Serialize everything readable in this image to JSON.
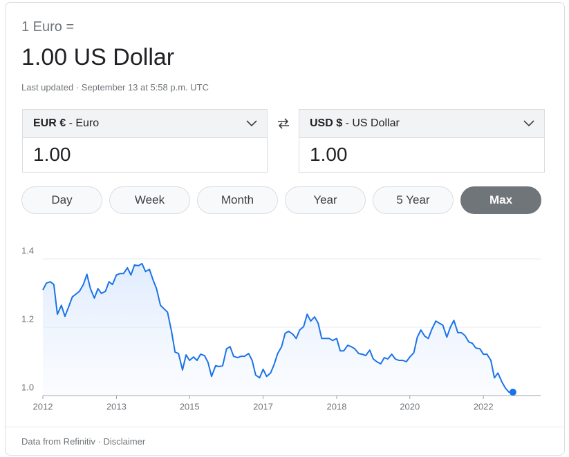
{
  "header": {
    "label": "1 Euro =",
    "result": "1.00 US Dollar",
    "updated": "Last updated · September 13 at 5:58 p.m. UTC"
  },
  "converter": {
    "from": {
      "code": "EUR €",
      "name": "- Euro",
      "amount": "1.00"
    },
    "to": {
      "code": "USD $",
      "name": "- US Dollar",
      "amount": "1.00"
    }
  },
  "ranges": {
    "options": [
      "Day",
      "Week",
      "Month",
      "Year",
      "5 Year",
      "Max"
    ],
    "selected": 5
  },
  "chart_data": {
    "type": "line",
    "color": "#1a73e8",
    "x": [
      2012,
      2012.08,
      2012.17,
      2012.25,
      2012.33,
      2012.42,
      2012.5,
      2012.58,
      2012.67,
      2012.75,
      2012.83,
      2012.92,
      2013,
      2013.08,
      2013.17,
      2013.25,
      2013.33,
      2013.42,
      2013.5,
      2013.58,
      2013.67,
      2013.75,
      2013.83,
      2013.92,
      2014,
      2014.08,
      2014.17,
      2014.25,
      2014.33,
      2014.42,
      2014.5,
      2014.58,
      2014.67,
      2014.75,
      2014.83,
      2014.92,
      2015,
      2015.08,
      2015.17,
      2015.25,
      2015.33,
      2015.42,
      2015.5,
      2015.58,
      2015.67,
      2015.75,
      2015.83,
      2015.92,
      2016,
      2016.08,
      2016.17,
      2016.25,
      2016.33,
      2016.42,
      2016.5,
      2016.58,
      2016.67,
      2016.75,
      2016.83,
      2016.92,
      2017,
      2017.08,
      2017.17,
      2017.25,
      2017.33,
      2017.42,
      2017.5,
      2017.58,
      2017.67,
      2017.75,
      2017.83,
      2017.92,
      2018,
      2018.08,
      2018.17,
      2018.25,
      2018.33,
      2018.42,
      2018.5,
      2018.58,
      2018.67,
      2018.75,
      2018.83,
      2018.92,
      2019,
      2019.08,
      2019.17,
      2019.25,
      2019.33,
      2019.42,
      2019.5,
      2019.58,
      2019.67,
      2019.75,
      2019.83,
      2019.92,
      2020,
      2020.08,
      2020.17,
      2020.25,
      2020.33,
      2020.42,
      2020.5,
      2020.58,
      2020.67,
      2020.75,
      2020.83,
      2020.92,
      2021,
      2021.08,
      2021.17,
      2021.25,
      2021.33,
      2021.42,
      2021.5,
      2021.58,
      2021.67,
      2021.75,
      2021.83,
      2021.92,
      2022,
      2022.08,
      2022.17,
      2022.25,
      2022.33,
      2022.42,
      2022.5,
      2022.58,
      2022.67
    ],
    "values": [
      1.309,
      1.329,
      1.333,
      1.325,
      1.238,
      1.264,
      1.232,
      1.258,
      1.289,
      1.297,
      1.305,
      1.325,
      1.355,
      1.313,
      1.285,
      1.313,
      1.299,
      1.305,
      1.333,
      1.325,
      1.353,
      1.357,
      1.357,
      1.374,
      1.353,
      1.382,
      1.38,
      1.386,
      1.363,
      1.369,
      1.339,
      1.313,
      1.264,
      1.254,
      1.244,
      1.188,
      1.127,
      1.123,
      1.075,
      1.119,
      1.103,
      1.113,
      1.103,
      1.121,
      1.117,
      1.097,
      1.056,
      1.087,
      1.085,
      1.087,
      1.137,
      1.143,
      1.115,
      1.111,
      1.115,
      1.115,
      1.123,
      1.103,
      1.06,
      1.052,
      1.077,
      1.056,
      1.066,
      1.091,
      1.123,
      1.143,
      1.182,
      1.188,
      1.18,
      1.167,
      1.192,
      1.202,
      1.238,
      1.218,
      1.23,
      1.212,
      1.167,
      1.167,
      1.167,
      1.161,
      1.167,
      1.131,
      1.131,
      1.147,
      1.143,
      1.137,
      1.123,
      1.121,
      1.117,
      1.133,
      1.107,
      1.099,
      1.093,
      1.111,
      1.107,
      1.121,
      1.107,
      1.103,
      1.103,
      1.099,
      1.113,
      1.125,
      1.171,
      1.192,
      1.174,
      1.167,
      1.194,
      1.218,
      1.212,
      1.206,
      1.171,
      1.2,
      1.22,
      1.184,
      1.184,
      1.176,
      1.157,
      1.153,
      1.139,
      1.137,
      1.121,
      1.121,
      1.103,
      1.052,
      1.066,
      1.04,
      1.022,
      1.01,
      1.01
    ],
    "xlim": [
      2012,
      2023.3
    ],
    "xticks": [
      2012,
      {
        "value": 2013.67,
        "label": "2013"
      },
      {
        "value": 2015.33,
        "label": "2015"
      },
      2017,
      {
        "value": 2018.67,
        "label": "2018"
      },
      {
        "value": 2020.33,
        "label": "2020"
      },
      2022
    ],
    "ylim": [
      1.0,
      1.4
    ],
    "yticks": [
      {
        "value": 1.0,
        "label": "1.0"
      },
      1.2,
      1.4
    ],
    "grid": true
  },
  "footer": {
    "source": "Data from Refinitiv",
    "separator": "·",
    "disclaimer": "Disclaimer"
  }
}
